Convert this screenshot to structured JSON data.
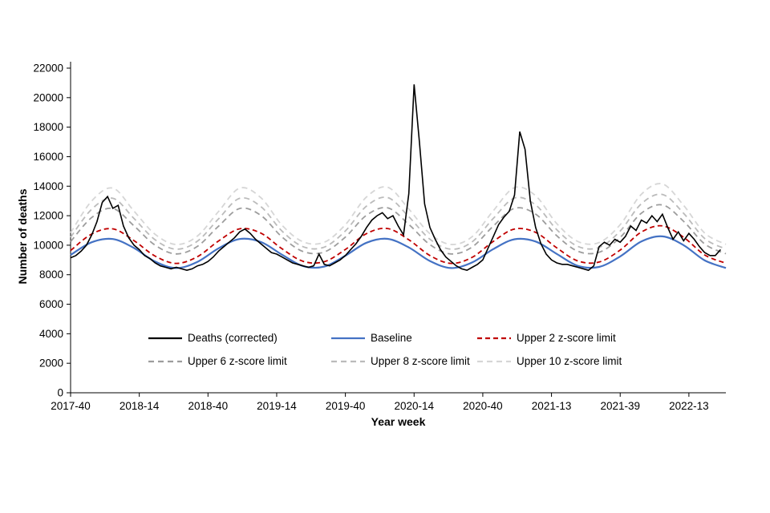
{
  "chart_data": {
    "type": "line",
    "title": "",
    "xlabel": "Year week",
    "ylabel": "Number of deaths",
    "ylim": [
      0,
      22000
    ],
    "y_tick_step": 2000,
    "grid": false,
    "legend_position": "inside-bottom-center",
    "x_axis": {
      "unit": "ISO year-week index (weeks since 2017-40)",
      "t_min": 0,
      "t_max": 248,
      "ticks": [
        {
          "t": 0,
          "label": "2017-40"
        },
        {
          "t": 26,
          "label": "2018-14"
        },
        {
          "t": 52,
          "label": "2018-40"
        },
        {
          "t": 78,
          "label": "2019-14"
        },
        {
          "t": 104,
          "label": "2019-40"
        },
        {
          "t": 130,
          "label": "2020-14"
        },
        {
          "t": 156,
          "label": "2020-40"
        },
        {
          "t": 182,
          "label": "2021-13"
        },
        {
          "t": 208,
          "label": "2021-39"
        },
        {
          "t": 234,
          "label": "2022-13"
        }
      ]
    },
    "smooth_series_t": [
      0,
      8,
      16,
      24,
      32,
      40,
      48,
      56,
      64,
      72,
      80,
      88,
      96,
      104,
      112,
      120,
      128,
      136,
      144,
      152,
      160,
      168,
      176,
      184,
      192,
      200,
      208,
      216,
      224,
      232,
      240,
      248
    ],
    "baseline": {
      "name": "Baseline",
      "color": "#4472c4",
      "style": "solid",
      "values": [
        9340,
        10200,
        10420,
        9810,
        8890,
        8450,
        8870,
        9790,
        10420,
        10220,
        9360,
        8580,
        8550,
        9290,
        10170,
        10430,
        9850,
        8930,
        8450,
        8830,
        9740,
        10400,
        10250,
        9410,
        8600,
        8530,
        9240,
        10250,
        10600,
        10000,
        8970,
        8460
      ]
    },
    "sd_values": [
      150,
      280,
      345,
      250,
      185,
      160,
      175,
      250,
      345,
      300,
      200,
      165,
      165,
      210,
      310,
      350,
      260,
      185,
      160,
      175,
      260,
      350,
      310,
      205,
      165,
      165,
      215,
      320,
      355,
      270,
      185,
      160
    ],
    "z_limits": [
      {
        "name": "Upper 2 z-score limit",
        "z": 2,
        "color": "#c00000",
        "style": "dashed",
        "dash": "6 4"
      },
      {
        "name": "Upper 6 z-score limit",
        "z": 6,
        "color": "#9d9d9d",
        "style": "dashed",
        "dash": "7 5"
      },
      {
        "name": "Upper 8 z-score limit",
        "z": 8,
        "color": "#bbbbbb",
        "style": "dashed",
        "dash": "7 5"
      },
      {
        "name": "Upper 10 z-score limit",
        "z": 10,
        "color": "#d6d6d6",
        "style": "dashed",
        "dash": "7 5"
      }
    ],
    "deaths": {
      "name": "Deaths (corrected)",
      "color": "#000000",
      "style": "solid",
      "t_start": 0,
      "t_step": 2,
      "values": [
        9150,
        9300,
        9600,
        10000,
        10700,
        11600,
        12900,
        13300,
        12500,
        12700,
        11300,
        10500,
        10000,
        9700,
        9300,
        9100,
        8800,
        8600,
        8500,
        8400,
        8500,
        8400,
        8300,
        8400,
        8600,
        8700,
        8900,
        9200,
        9600,
        9900,
        10200,
        10500,
        10900,
        11100,
        10800,
        10400,
        10100,
        9800,
        9500,
        9400,
        9200,
        9000,
        8800,
        8700,
        8600,
        8500,
        8600,
        9400,
        8700,
        8600,
        8800,
        9000,
        9300,
        9700,
        10100,
        10600,
        11200,
        11700,
        12000,
        12200,
        11800,
        12000,
        11300,
        10700,
        13500,
        20900,
        17000,
        12800,
        11200,
        10400,
        9700,
        9200,
        8900,
        8600,
        8400,
        8300,
        8500,
        8700,
        9000,
        9800,
        10600,
        11400,
        11900,
        12300,
        13400,
        17700,
        16500,
        13000,
        11200,
        10100,
        9400,
        9000,
        8800,
        8700,
        8700,
        8600,
        8500,
        8400,
        8300,
        8600,
        9900,
        10200,
        10000,
        10400,
        10200,
        10600,
        11300,
        11000,
        11700,
        11500,
        12000,
        11600,
        12100,
        11200,
        10400,
        10900,
        10300,
        10800,
        10400,
        9900,
        9500,
        9300,
        9300,
        9700
      ]
    },
    "legend_rows": [
      [
        "Deaths (corrected)",
        "Baseline",
        "Upper 2 z-score limit"
      ],
      [
        "Upper 6 z-score limit",
        "Upper 8 z-score limit",
        "Upper 10 z-score limit"
      ]
    ]
  }
}
